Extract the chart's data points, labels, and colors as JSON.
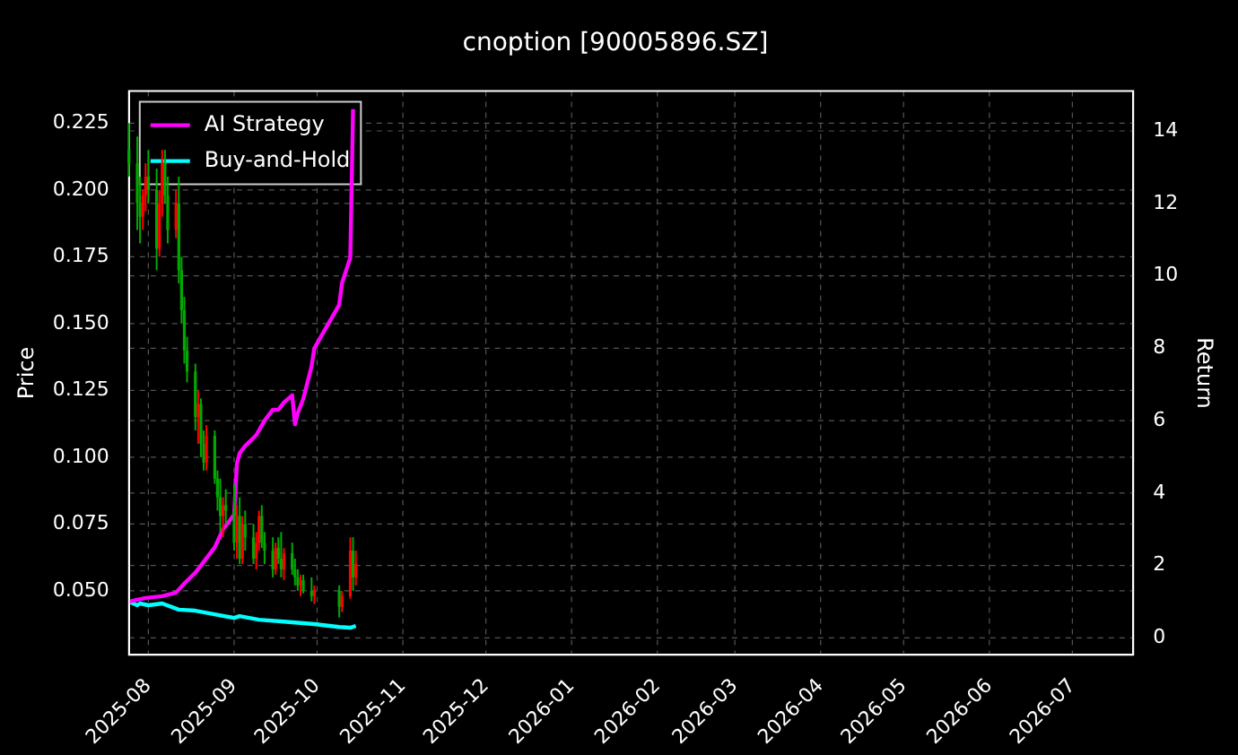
{
  "chart_data": {
    "type": "candlestick",
    "title": "cnoption [90005896.SZ]",
    "ylabel": "Price",
    "y2label": "Return",
    "x": [
      "2025-07-25",
      "2025-07-28",
      "2025-07-29",
      "2025-07-30",
      "2025-07-31",
      "2025-08-01",
      "2025-08-04",
      "2025-08-05",
      "2025-08-06",
      "2025-08-07",
      "2025-08-08",
      "2025-08-11",
      "2025-08-12",
      "2025-08-13",
      "2025-08-14",
      "2025-08-15",
      "2025-08-18",
      "2025-08-19",
      "2025-08-20",
      "2025-08-21",
      "2025-08-22",
      "2025-08-25",
      "2025-08-26",
      "2025-08-27",
      "2025-08-28",
      "2025-08-29",
      "2025-09-01",
      "2025-09-02",
      "2025-09-03",
      "2025-09-04",
      "2025-09-05",
      "2025-09-08",
      "2025-09-09",
      "2025-09-10",
      "2025-09-11",
      "2025-09-12",
      "2025-09-15",
      "2025-09-16",
      "2025-09-17",
      "2025-09-18",
      "2025-09-19",
      "2025-09-22",
      "2025-09-23",
      "2025-09-24",
      "2025-09-25",
      "2025-09-26",
      "2025-09-29",
      "2025-09-30",
      "2025-10-09",
      "2025-10-10",
      "2025-10-13",
      "2025-10-14",
      "2025-10-15"
    ],
    "ohlc": [
      [
        0.215,
        0.225,
        0.205,
        0.21
      ],
      [
        0.21,
        0.22,
        0.185,
        0.195
      ],
      [
        0.195,
        0.205,
        0.18,
        0.19
      ],
      [
        0.19,
        0.2,
        0.185,
        0.198
      ],
      [
        0.198,
        0.21,
        0.192,
        0.205
      ],
      [
        0.205,
        0.215,
        0.195,
        0.2
      ],
      [
        0.2,
        0.208,
        0.17,
        0.178
      ],
      [
        0.178,
        0.2,
        0.175,
        0.195
      ],
      [
        0.195,
        0.215,
        0.19,
        0.21
      ],
      [
        0.21,
        0.215,
        0.195,
        0.198
      ],
      [
        0.198,
        0.205,
        0.18,
        0.185
      ],
      [
        0.185,
        0.2,
        0.182,
        0.195
      ],
      [
        0.195,
        0.205,
        0.165,
        0.17
      ],
      [
        0.17,
        0.175,
        0.15,
        0.155
      ],
      [
        0.155,
        0.16,
        0.135,
        0.14
      ],
      [
        0.14,
        0.145,
        0.128,
        0.132
      ],
      [
        0.132,
        0.135,
        0.11,
        0.115
      ],
      [
        0.115,
        0.125,
        0.105,
        0.12
      ],
      [
        0.12,
        0.122,
        0.1,
        0.105
      ],
      [
        0.105,
        0.11,
        0.095,
        0.098
      ],
      [
        0.098,
        0.112,
        0.095,
        0.108
      ],
      [
        0.108,
        0.11,
        0.09,
        0.092
      ],
      [
        0.092,
        0.095,
        0.08,
        0.085
      ],
      [
        0.085,
        0.092,
        0.072,
        0.078
      ],
      [
        0.078,
        0.085,
        0.07,
        0.082
      ],
      [
        0.082,
        0.088,
        0.075,
        0.08
      ],
      [
        0.08,
        0.09,
        0.065,
        0.068
      ],
      [
        0.068,
        0.082,
        0.062,
        0.078
      ],
      [
        0.078,
        0.085,
        0.06,
        0.062
      ],
      [
        0.062,
        0.078,
        0.06,
        0.075
      ],
      [
        0.075,
        0.08,
        0.065,
        0.07
      ],
      [
        0.07,
        0.075,
        0.06,
        0.062
      ],
      [
        0.062,
        0.072,
        0.058,
        0.068
      ],
      [
        0.068,
        0.08,
        0.065,
        0.078
      ],
      [
        0.078,
        0.082,
        0.066,
        0.068
      ],
      [
        0.068,
        0.072,
        0.06,
        0.065
      ],
      [
        0.065,
        0.07,
        0.055,
        0.058
      ],
      [
        0.058,
        0.068,
        0.056,
        0.066
      ],
      [
        0.066,
        0.07,
        0.06,
        0.062
      ],
      [
        0.062,
        0.072,
        0.055,
        0.058
      ],
      [
        0.058,
        0.066,
        0.054,
        0.064
      ],
      [
        0.064,
        0.068,
        0.056,
        0.058
      ],
      [
        0.058,
        0.062,
        0.052,
        0.055
      ],
      [
        0.055,
        0.058,
        0.05,
        0.052
      ],
      [
        0.052,
        0.056,
        0.048,
        0.054
      ],
      [
        0.054,
        0.056,
        0.049,
        0.05
      ],
      [
        0.05,
        0.055,
        0.046,
        0.048
      ],
      [
        0.048,
        0.052,
        0.045,
        0.05
      ],
      [
        0.05,
        0.052,
        0.04,
        0.044
      ],
      [
        0.044,
        0.05,
        0.042,
        0.048
      ],
      [
        0.048,
        0.07,
        0.047,
        0.065
      ],
      [
        0.065,
        0.07,
        0.05,
        0.055
      ],
      [
        0.055,
        0.065,
        0.052,
        0.06
      ]
    ],
    "colors": [
      "#00aa00",
      "#00aa00",
      "#00aa00",
      "#ff0000",
      "#ff0000",
      "#00aa00",
      "#00aa00",
      "#ff0000",
      "#ff0000",
      "#00aa00",
      "#00aa00",
      "#ff0000",
      "#00aa00",
      "#00aa00",
      "#00aa00",
      "#00aa00",
      "#00aa00",
      "#ff0000",
      "#00aa00",
      "#00aa00",
      "#ff0000",
      "#00aa00",
      "#00aa00",
      "#00aa00",
      "#ff0000",
      "#00aa00",
      "#00aa00",
      "#ff0000",
      "#00aa00",
      "#ff0000",
      "#00aa00",
      "#00aa00",
      "#ff0000",
      "#ff0000",
      "#00aa00",
      "#00aa00",
      "#00aa00",
      "#ff0000",
      "#00aa00",
      "#00aa00",
      "#ff0000",
      "#00aa00",
      "#00aa00",
      "#00aa00",
      "#ff0000",
      "#00aa00",
      "#00aa00",
      "#ff0000",
      "#00aa00",
      "#ff0000",
      "#ff0000",
      "#00aa00",
      "#ff0000"
    ],
    "series": [
      {
        "name": "AI Strategy",
        "type": "line",
        "axis": "y2",
        "color": "#ff00ff",
        "x": [
          "2025-07-25",
          "2025-07-31",
          "2025-08-06",
          "2025-08-11",
          "2025-08-14",
          "2025-08-18",
          "2025-08-21",
          "2025-08-25",
          "2025-08-28",
          "2025-09-01",
          "2025-09-02",
          "2025-09-03",
          "2025-09-05",
          "2025-09-09",
          "2025-09-12",
          "2025-09-15",
          "2025-09-17",
          "2025-09-19",
          "2025-09-22",
          "2025-09-23",
          "2025-09-24",
          "2025-09-26",
          "2025-09-29",
          "2025-09-30",
          "2025-10-09",
          "2025-10-10",
          "2025-10-13",
          "2025-10-14"
        ],
        "values": [
          1.0,
          1.1,
          1.15,
          1.25,
          1.5,
          1.8,
          2.1,
          2.5,
          3.0,
          3.4,
          4.8,
          5.1,
          5.3,
          5.6,
          6.0,
          6.3,
          6.3,
          6.5,
          6.7,
          5.9,
          6.2,
          6.6,
          7.5,
          8.0,
          9.2,
          9.8,
          10.5,
          14.6
        ]
      },
      {
        "name": "Buy-and-Hold",
        "type": "line",
        "axis": "y2",
        "color": "#00ffff",
        "x": [
          "2025-07-25",
          "2025-07-28",
          "2025-07-29",
          "2025-08-01",
          "2025-08-06",
          "2025-08-12",
          "2025-08-18",
          "2025-08-25",
          "2025-09-01",
          "2025-09-03",
          "2025-09-10",
          "2025-09-19",
          "2025-09-30",
          "2025-10-09",
          "2025-10-13",
          "2025-10-15"
        ],
        "values": [
          1.0,
          0.9,
          0.95,
          0.9,
          0.95,
          0.78,
          0.75,
          0.65,
          0.55,
          0.6,
          0.5,
          0.45,
          0.38,
          0.3,
          0.28,
          0.33
        ]
      }
    ],
    "xlim": [
      "2025-07-25",
      "2026-07-23"
    ],
    "xticks": [
      {
        "value": "2025-08-01",
        "label": "2025-08"
      },
      {
        "value": "2025-09-01",
        "label": "2025-09"
      },
      {
        "value": "2025-10-01",
        "label": "2025-10"
      },
      {
        "value": "2025-11-01",
        "label": "2025-11"
      },
      {
        "value": "2025-12-01",
        "label": "2025-12"
      },
      {
        "value": "2026-01-01",
        "label": "2026-01"
      },
      {
        "value": "2026-02-01",
        "label": "2026-02"
      },
      {
        "value": "2026-03-01",
        "label": "2026-03"
      },
      {
        "value": "2026-04-01",
        "label": "2026-04"
      },
      {
        "value": "2026-05-01",
        "label": "2026-05"
      },
      {
        "value": "2026-06-01",
        "label": "2026-06"
      },
      {
        "value": "2026-07-01",
        "label": "2026-07"
      }
    ],
    "ylim": [
      0.026,
      0.237
    ],
    "yticks": [
      {
        "value": 0.05,
        "label": "0.050"
      },
      {
        "value": 0.075,
        "label": "0.075"
      },
      {
        "value": 0.1,
        "label": "0.100"
      },
      {
        "value": 0.125,
        "label": "0.125"
      },
      {
        "value": 0.15,
        "label": "0.150"
      },
      {
        "value": 0.175,
        "label": "0.175"
      },
      {
        "value": 0.2,
        "label": "0.200"
      },
      {
        "value": 0.225,
        "label": "0.225"
      }
    ],
    "y2lim": [
      -0.47,
      15.1
    ],
    "y2ticks": [
      0,
      2,
      4,
      6,
      8,
      10,
      12,
      14
    ],
    "grid": true,
    "legend": "top left",
    "line_style": "solid",
    "marker": "none"
  }
}
